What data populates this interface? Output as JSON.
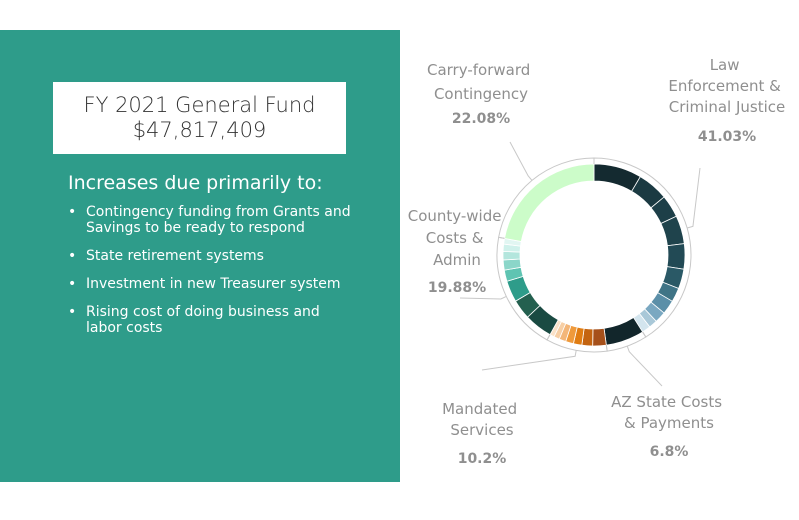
{
  "slide": {
    "title_line1": "FY 2021 General Fund",
    "title_line2": "$47,817,409",
    "subheading": "Increases due primarily to:",
    "bullets": [
      "Contingency funding from Grants and Savings to be ready to respond",
      "State retirement systems",
      "Investment in new Treasurer system",
      "Rising cost of doing business and labor costs"
    ]
  },
  "chart_data": {
    "type": "pie",
    "donut": true,
    "legend": "none",
    "categories": [
      "Law Enforcement & Criminal Justice",
      "AZ State Costs & Payments",
      "Mandated Services",
      "County-wide Costs & Admin",
      "Carry-forward Contingency"
    ],
    "values": [
      41.03,
      6.8,
      10.2,
      19.88,
      22.08
    ],
    "label_lines": [
      [
        "Law",
        "Enforcement &",
        "Criminal Justice"
      ],
      [
        "AZ State Costs",
        "& Payments"
      ],
      [
        "Mandated",
        "Services"
      ],
      [
        "County-wide",
        "Costs &",
        "Admin"
      ],
      [
        "Carry-forward",
        "Contingency"
      ]
    ],
    "value_labels": [
      "41.03%",
      "6.8%",
      "10.2%",
      "19.88%",
      "22.08%"
    ],
    "groups": [
      {
        "slices": [
          8.5,
          5.5,
          4.0,
          5.0,
          4.5,
          3.5,
          2.5,
          2.5,
          2.0,
          1.5,
          1.53
        ],
        "colors": [
          "#142a30",
          "#1b3a42",
          "#1d3f48",
          "#1f434c",
          "#224a55",
          "#2a5966",
          "#3f7486",
          "#5b8fa8",
          "#7aa8c1",
          "#a9c8d8",
          "#d3e5ee"
        ]
      },
      {
        "slices": [
          6.8
        ],
        "colors": [
          "#12262b"
        ]
      },
      {
        "slices": [
          2.4,
          1.9,
          1.5,
          1.4,
          1.2,
          1.0,
          0.8
        ],
        "colors": [
          "#a6501a",
          "#c46410",
          "#e07c12",
          "#ef9a3c",
          "#f3b679",
          "#f7cfa5",
          "#fae2c8"
        ]
      },
      {
        "slices": [
          5.0,
          3.5,
          3.8,
          2.0,
          1.8,
          1.5,
          1.28,
          1.0
        ],
        "colors": [
          "#1a4a42",
          "#24604f",
          "#2e9c8a",
          "#5fc4b2",
          "#8bd6c9",
          "#b3e6dd",
          "#cff1eb",
          "#e1f6f2"
        ]
      },
      {
        "slices": [
          22.08
        ],
        "colors": [
          "#ccfcc9"
        ]
      }
    ]
  }
}
